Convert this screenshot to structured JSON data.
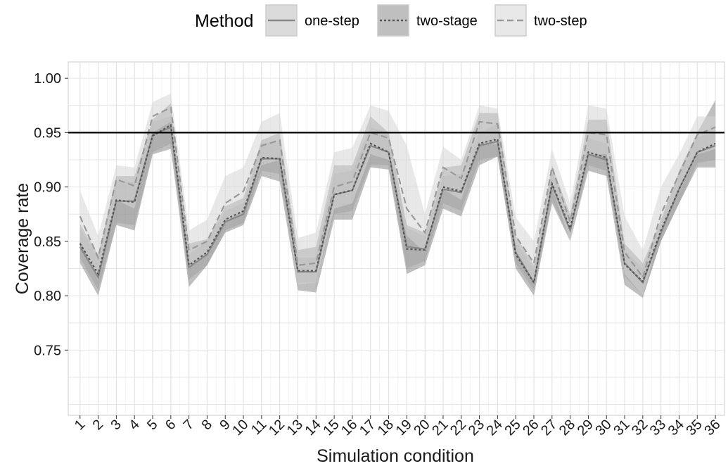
{
  "chart_data": {
    "type": "line",
    "title": "",
    "xlabel": "Simulation condition",
    "ylabel": "Coverage rate",
    "x": [
      1,
      2,
      3,
      4,
      5,
      6,
      7,
      8,
      9,
      10,
      11,
      12,
      13,
      14,
      15,
      16,
      17,
      18,
      19,
      20,
      21,
      22,
      23,
      24,
      25,
      26,
      27,
      28,
      29,
      30,
      31,
      32,
      33,
      34,
      35,
      36
    ],
    "x_tick_labels": [
      "1",
      "2",
      "3",
      "4",
      "5",
      "6",
      "7",
      "8",
      "9",
      "10",
      "11",
      "12",
      "13",
      "14",
      "15",
      "16",
      "17",
      "18",
      "19",
      "20",
      "21",
      "22",
      "23",
      "24",
      "25",
      "26",
      "27",
      "28",
      "29",
      "30",
      "31",
      "32",
      "33",
      "34",
      "35",
      "36"
    ],
    "y_ticks": [
      0.75,
      0.8,
      0.85,
      0.9,
      0.95,
      1.0
    ],
    "y_tick_labels": [
      "0.75",
      "0.80",
      "0.85",
      "0.90",
      "0.95",
      "1.00"
    ],
    "ylim": [
      0.69,
      1.015
    ],
    "grid": true,
    "reference_line": 0.95,
    "legend": {
      "title": "Method",
      "placement": "top",
      "entries": [
        "one-step",
        "two-stage",
        "two-step"
      ]
    },
    "series": [
      {
        "name": "one-step",
        "line_style": "solid",
        "line_color": "#888888",
        "band_color": "#bdbdbd",
        "values": [
          0.845,
          0.817,
          0.887,
          0.887,
          0.948,
          0.955,
          0.826,
          0.838,
          0.868,
          0.875,
          0.926,
          0.926,
          0.822,
          0.822,
          0.893,
          0.897,
          0.938,
          0.932,
          0.845,
          0.843,
          0.898,
          0.895,
          0.938,
          0.942,
          0.84,
          0.812,
          0.902,
          0.86,
          0.93,
          0.925,
          0.83,
          0.812,
          0.858,
          0.898,
          0.932,
          0.938
        ],
        "lower": [
          0.835,
          0.805,
          0.867,
          0.865,
          0.932,
          0.94,
          0.815,
          0.828,
          0.86,
          0.867,
          0.915,
          0.912,
          0.812,
          0.812,
          0.875,
          0.878,
          0.92,
          0.92,
          0.825,
          0.832,
          0.885,
          0.878,
          0.925,
          0.928,
          0.83,
          0.805,
          0.888,
          0.852,
          0.92,
          0.915,
          0.818,
          0.8,
          0.85,
          0.885,
          0.922,
          0.925
        ],
        "upper": [
          0.862,
          0.835,
          0.905,
          0.905,
          0.96,
          0.965,
          0.838,
          0.85,
          0.878,
          0.885,
          0.94,
          0.942,
          0.835,
          0.835,
          0.912,
          0.915,
          0.955,
          0.95,
          0.862,
          0.855,
          0.91,
          0.912,
          0.95,
          0.958,
          0.85,
          0.825,
          0.915,
          0.87,
          0.945,
          0.94,
          0.842,
          0.825,
          0.868,
          0.912,
          0.946,
          0.95
        ]
      },
      {
        "name": "two-stage",
        "line_style": "dotted",
        "line_color": "#555555",
        "band_color": "#8a8a8a",
        "values": [
          0.848,
          0.82,
          0.888,
          0.886,
          0.947,
          0.957,
          0.828,
          0.84,
          0.87,
          0.878,
          0.927,
          0.926,
          0.823,
          0.823,
          0.893,
          0.897,
          0.94,
          0.932,
          0.843,
          0.842,
          0.9,
          0.896,
          0.94,
          0.944,
          0.838,
          0.812,
          0.903,
          0.862,
          0.932,
          0.927,
          0.829,
          0.813,
          0.86,
          0.898,
          0.932,
          0.94
        ],
        "lower": [
          0.83,
          0.8,
          0.865,
          0.86,
          0.93,
          0.935,
          0.808,
          0.828,
          0.858,
          0.865,
          0.91,
          0.905,
          0.805,
          0.803,
          0.87,
          0.87,
          0.918,
          0.916,
          0.82,
          0.828,
          0.88,
          0.873,
          0.92,
          0.928,
          0.825,
          0.8,
          0.885,
          0.85,
          0.915,
          0.91,
          0.81,
          0.798,
          0.85,
          0.885,
          0.918,
          0.918
        ],
        "upper": [
          0.866,
          0.838,
          0.91,
          0.91,
          0.962,
          0.977,
          0.848,
          0.852,
          0.882,
          0.89,
          0.943,
          0.95,
          0.842,
          0.845,
          0.92,
          0.92,
          0.965,
          0.95,
          0.865,
          0.858,
          0.918,
          0.92,
          0.968,
          0.968,
          0.855,
          0.828,
          0.92,
          0.875,
          0.962,
          0.962,
          0.848,
          0.83,
          0.87,
          0.915,
          0.95,
          0.98
        ]
      },
      {
        "name": "two-step",
        "line_style": "dashed",
        "line_color": "#9a9a9a",
        "band_color": "#d6d6d6",
        "values": [
          0.873,
          0.835,
          0.907,
          0.901,
          0.965,
          0.973,
          0.842,
          0.85,
          0.885,
          0.896,
          0.938,
          0.943,
          0.828,
          0.83,
          0.9,
          0.905,
          0.95,
          0.945,
          0.88,
          0.858,
          0.918,
          0.908,
          0.96,
          0.958,
          0.855,
          0.83,
          0.918,
          0.868,
          0.95,
          0.948,
          0.84,
          0.817,
          0.875,
          0.912,
          0.948,
          0.955
        ],
        "lower": [
          0.85,
          0.815,
          0.888,
          0.88,
          0.95,
          0.96,
          0.825,
          0.838,
          0.868,
          0.878,
          0.92,
          0.925,
          0.81,
          0.812,
          0.88,
          0.885,
          0.93,
          0.925,
          0.855,
          0.84,
          0.898,
          0.888,
          0.94,
          0.94,
          0.838,
          0.812,
          0.9,
          0.85,
          0.93,
          0.93,
          0.82,
          0.8,
          0.86,
          0.895,
          0.93,
          0.935
        ],
        "upper": [
          0.897,
          0.855,
          0.92,
          0.918,
          0.978,
          0.986,
          0.86,
          0.87,
          0.91,
          0.918,
          0.96,
          0.968,
          0.853,
          0.858,
          0.932,
          0.936,
          0.975,
          0.97,
          0.938,
          0.875,
          0.937,
          0.925,
          0.975,
          0.972,
          0.872,
          0.85,
          0.935,
          0.885,
          0.975,
          0.972,
          0.873,
          0.842,
          0.9,
          0.93,
          0.965,
          0.965
        ]
      }
    ]
  }
}
